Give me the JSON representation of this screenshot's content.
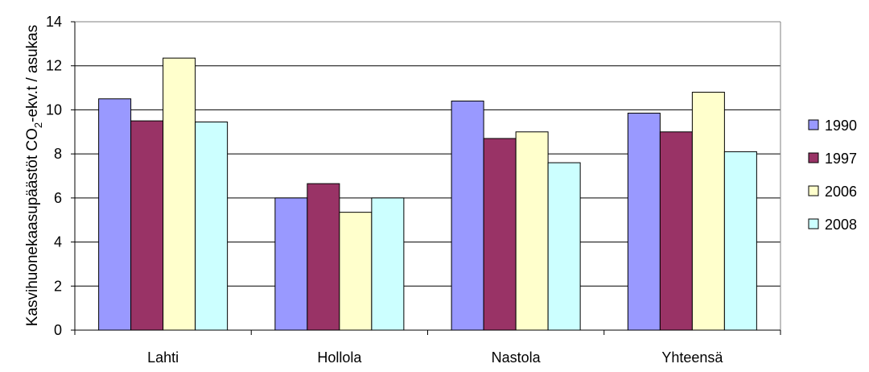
{
  "chart_data": {
    "type": "bar",
    "title": "",
    "xlabel": "",
    "ylabel": {
      "main": "Kasvihuonekaasupäästöt CO",
      "sub": "2",
      "rest": "-ekv.t / asukas"
    },
    "categories": [
      "Lahti",
      "Hollola",
      "Nastola",
      "Yhteensä"
    ],
    "series": [
      {
        "name": "1990",
        "color": "#9999ff",
        "values": [
          10.5,
          6.0,
          10.4,
          9.85
        ]
      },
      {
        "name": "1997",
        "color": "#993366",
        "values": [
          9.5,
          6.65,
          8.7,
          9.0
        ]
      },
      {
        "name": "2006",
        "color": "#ffffcc",
        "values": [
          12.35,
          5.35,
          9.0,
          10.8
        ]
      },
      {
        "name": "2008",
        "color": "#ccffff",
        "values": [
          9.45,
          6.0,
          7.6,
          8.1
        ]
      }
    ],
    "ylim": [
      0,
      14
    ],
    "yticks": [
      0,
      2,
      4,
      6,
      8,
      10,
      12,
      14
    ],
    "grid": true,
    "legend_position": "right"
  }
}
